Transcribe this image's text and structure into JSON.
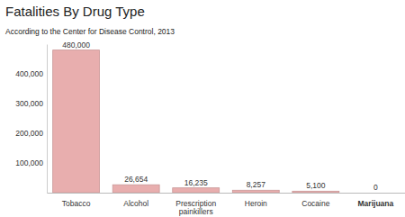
{
  "chart_data": {
    "type": "bar",
    "title": "Fatalities By Drug Type",
    "subtitle": "According to the Center for Disease Control, 2013",
    "categories": [
      "Tobacco",
      "Alcohol",
      "Prescription painkillers",
      "Heroin",
      "Cocaine",
      "Marijuana"
    ],
    "values": [
      480000,
      26654,
      16235,
      8257,
      5100,
      0
    ],
    "value_labels": [
      "480,000",
      "26,654",
      "16,235",
      "8,257",
      "5,100",
      "0"
    ],
    "color": "#e8aeae",
    "ylim": [
      0,
      500000
    ],
    "yticks": [
      {
        "value": 100000,
        "label": "100,000"
      },
      {
        "value": 200000,
        "label": "200,000"
      },
      {
        "value": 300000,
        "label": "300,000"
      },
      {
        "value": 400000,
        "label": "400,000"
      }
    ],
    "grid": false,
    "data_labels": true
  }
}
